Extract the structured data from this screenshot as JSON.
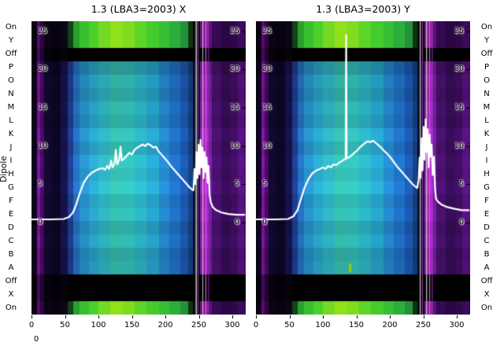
{
  "figure": {
    "background": "#ffffff",
    "text_color": "#000000",
    "ylabel": "Dipole",
    "corner_label": "0"
  },
  "chart_data": {
    "type": "heatmap",
    "description": "Two dipole spectrum heatmaps (X and Y polarization) with overlaid white median-power line",
    "x_domain": [
      0,
      320
    ],
    "x_ticks": [
      0,
      50,
      100,
      150,
      200,
      250,
      300
    ],
    "value_ticks": [
      25,
      20,
      15,
      10,
      5,
      0
    ],
    "value_axis": {
      "zero_frac": 0.686,
      "per_unit_frac": 0.02606
    },
    "row_labels": [
      "On",
      "Y",
      "Off",
      "P",
      "O",
      "N",
      "M",
      "L",
      "K",
      "J",
      "I",
      "H",
      "G",
      "F",
      "E",
      "D",
      "C",
      "B",
      "A",
      "Off",
      "X",
      "On"
    ],
    "row_shade": [
      0.8,
      0.92,
      0.86,
      0.96,
      0.9,
      1.04,
      0.94,
      1.06,
      1.0,
      1.08,
      0.96,
      1.02,
      0.9,
      0.98,
      0.86,
      0.9
    ],
    "line_color": "#ffffff",
    "columns": [
      {
        "x0": 0,
        "x1": 8,
        "top": "#0a0210",
        "off": "#05010a",
        "mid": "#0e041e",
        "bot": "#0a0210"
      },
      {
        "x0": 8,
        "x1": 13,
        "top": "#5a0a70",
        "off": "#47085a",
        "mid": "#8014a4",
        "bot": "#5a0a70"
      },
      {
        "x0": 13,
        "x1": 19,
        "top": "#2e063e",
        "off": "#1e0430",
        "mid": "#480a62",
        "bot": "#2e063e"
      },
      {
        "x0": 19,
        "x1": 30,
        "top": "#0c0216",
        "off": "#06010c",
        "mid": "#120830",
        "bot": "#0c0216"
      },
      {
        "x0": 30,
        "x1": 44,
        "top": "#070110",
        "off": "#040008",
        "mid": "#0c0626",
        "bot": "#070110"
      },
      {
        "x0": 44,
        "x1": 54,
        "top": "#0a0616",
        "off": "#05020c",
        "mid": "#16124e",
        "bot": "#0a0616"
      },
      {
        "x0": 54,
        "x1": 62,
        "top": "#14421a",
        "off": "#000000",
        "mid": "#1e3e92",
        "bot": "#14421a"
      },
      {
        "x0": 62,
        "x1": 72,
        "top": "#2aa02a",
        "off": "#000000",
        "mid": "#2472c2",
        "bot": "#2aa02a"
      },
      {
        "x0": 72,
        "x1": 86,
        "top": "#38c030",
        "off": "#000000",
        "mid": "#2892cc",
        "bot": "#38c030"
      },
      {
        "x0": 86,
        "x1": 100,
        "top": "#4cd02c",
        "off": "#000000",
        "mid": "#2aa8cc",
        "bot": "#4cd02c"
      },
      {
        "x0": 100,
        "x1": 118,
        "top": "#74d824",
        "off": "#000000",
        "mid": "#30b6c4",
        "bot": "#74d824"
      },
      {
        "x0": 118,
        "x1": 136,
        "top": "#90e01c",
        "off": "#000000",
        "mid": "#36bfb2",
        "bot": "#90e01c"
      },
      {
        "x0": 136,
        "x1": 154,
        "top": "#80dc20",
        "off": "#000000",
        "mid": "#32c0ba",
        "bot": "#80dc20"
      },
      {
        "x0": 154,
        "x1": 172,
        "top": "#5cd428",
        "off": "#000000",
        "mid": "#2cb6c6",
        "bot": "#5cd428"
      },
      {
        "x0": 172,
        "x1": 190,
        "top": "#44cc2e",
        "off": "#000000",
        "mid": "#28a6ce",
        "bot": "#44cc2e"
      },
      {
        "x0": 190,
        "x1": 206,
        "top": "#36be34",
        "off": "#000000",
        "mid": "#248ace",
        "bot": "#36be34"
      },
      {
        "x0": 206,
        "x1": 222,
        "top": "#2cae3a",
        "off": "#000000",
        "mid": "#2072c8",
        "bot": "#2cae3a"
      },
      {
        "x0": 222,
        "x1": 234,
        "top": "#249238",
        "off": "#000000",
        "mid": "#1c5ab2",
        "bot": "#249238"
      },
      {
        "x0": 234,
        "x1": 241,
        "top": "#0e3414",
        "off": "#000000",
        "mid": "#144084",
        "bot": "#0e3414"
      },
      {
        "x0": 241,
        "x1": 252,
        "top": "#060608",
        "off": "#000000",
        "mid": "#081026",
        "bot": "#060608"
      },
      {
        "x0": 252,
        "x1": 257,
        "top": "#6e1680",
        "off": "#000000",
        "mid": "#9420ae",
        "bot": "#6e1680"
      },
      {
        "x0": 257,
        "x1": 263,
        "top": "#8c1e98",
        "off": "#000000",
        "mid": "#ac28c4",
        "bot": "#8c1e98"
      },
      {
        "x0": 263,
        "x1": 269,
        "top": "#5c1274",
        "off": "#000000",
        "mid": "#7820a2",
        "bot": "#5c1274"
      },
      {
        "x0": 269,
        "x1": 284,
        "top": "#360a52",
        "off": "#000000",
        "mid": "#4a1070",
        "bot": "#360a52"
      },
      {
        "x0": 284,
        "x1": 298,
        "top": "#2a0642",
        "off": "#000000",
        "mid": "#380c58",
        "bot": "#2a0642"
      },
      {
        "x0": 298,
        "x1": 308,
        "top": "#300848",
        "off": "#000000",
        "mid": "#400e62",
        "bot": "#300848"
      },
      {
        "x0": 308,
        "x1": 320,
        "top": "#3c0a5a",
        "off": "#000000",
        "mid": "#561280",
        "bot": "#3c0a5a"
      }
    ],
    "panels": [
      {
        "title": "1.3 (LBA3=2003) X",
        "stripes": [
          {
            "x": 246,
            "w": 1.2,
            "color": "#f2f2f6"
          },
          {
            "x": 248.5,
            "w": 0.8,
            "color": "#cc44dd"
          },
          {
            "x": 256,
            "w": 0.8,
            "color": "#eeeef4"
          },
          {
            "x": 260.5,
            "w": 1.2,
            "color": "#dd55ee"
          },
          {
            "x": 264.5,
            "w": 0.8,
            "color": "#aa33cc"
          }
        ],
        "marks": [],
        "line": [
          [
            0,
            0.4
          ],
          [
            30,
            0.4
          ],
          [
            48,
            0.45
          ],
          [
            56,
            0.7
          ],
          [
            62,
            1.3
          ],
          [
            67,
            2.4
          ],
          [
            72,
            3.8
          ],
          [
            78,
            5.2
          ],
          [
            84,
            6.0
          ],
          [
            90,
            6.5
          ],
          [
            96,
            6.8
          ],
          [
            101,
            7.0
          ],
          [
            106,
            7.1
          ],
          [
            110,
            6.9
          ],
          [
            113,
            7.4
          ],
          [
            116,
            7.0
          ],
          [
            119,
            8.1
          ],
          [
            121,
            7.2
          ],
          [
            124,
            7.7
          ],
          [
            126,
            9.5
          ],
          [
            128,
            7.6
          ],
          [
            131,
            8.2
          ],
          [
            133,
            9.9
          ],
          [
            135,
            8.1
          ],
          [
            138,
            8.3
          ],
          [
            142,
            8.7
          ],
          [
            146,
            9.1
          ],
          [
            150,
            8.9
          ],
          [
            154,
            9.5
          ],
          [
            158,
            9.8
          ],
          [
            162,
            10.0
          ],
          [
            166,
            10.2
          ],
          [
            170,
            10.0
          ],
          [
            174,
            10.3
          ],
          [
            178,
            10.1
          ],
          [
            182,
            9.8
          ],
          [
            186,
            9.9
          ],
          [
            190,
            9.3
          ],
          [
            194,
            8.9
          ],
          [
            198,
            8.5
          ],
          [
            203,
            8.0
          ],
          [
            208,
            7.4
          ],
          [
            213,
            6.9
          ],
          [
            218,
            6.4
          ],
          [
            223,
            5.9
          ],
          [
            228,
            5.4
          ],
          [
            232,
            5.0
          ],
          [
            236,
            4.6
          ],
          [
            240,
            4.3
          ],
          [
            242,
            4.2
          ],
          [
            243.5,
            7.0
          ],
          [
            245,
            5.0
          ],
          [
            246.5,
            9.2
          ],
          [
            248,
            5.8
          ],
          [
            249.5,
            10.2
          ],
          [
            251,
            6.3
          ],
          [
            252.5,
            10.8
          ],
          [
            254,
            7.2
          ],
          [
            255.5,
            9.8
          ],
          [
            257,
            5.8
          ],
          [
            258.5,
            9.2
          ],
          [
            260,
            6.6
          ],
          [
            261.5,
            8.5
          ],
          [
            263,
            5.2
          ],
          [
            264.5,
            7.4
          ],
          [
            266,
            3.6
          ],
          [
            268,
            2.6
          ],
          [
            271,
            2.0
          ],
          [
            276,
            1.6
          ],
          [
            284,
            1.3
          ],
          [
            294,
            1.1
          ],
          [
            306,
            1.0
          ],
          [
            318,
            1.0
          ]
        ]
      },
      {
        "title": "1.3 (LBA3=2003) Y",
        "stripes": [
          {
            "x": 245.5,
            "w": 1.0,
            "color": "#f2f2f6"
          },
          {
            "x": 249,
            "w": 0.8,
            "color": "#cc44dd"
          },
          {
            "x": 255,
            "w": 1.0,
            "color": "#eeeef4"
          },
          {
            "x": 259.5,
            "w": 1.2,
            "color": "#dd55ee"
          },
          {
            "x": 263.5,
            "w": 0.8,
            "color": "#bb44dd"
          }
        ],
        "marks": [
          {
            "x": 139,
            "row": 18,
            "color": "#99cc00"
          }
        ],
        "line": [
          [
            0,
            0.4
          ],
          [
            30,
            0.4
          ],
          [
            48,
            0.45
          ],
          [
            56,
            0.8
          ],
          [
            62,
            1.6
          ],
          [
            67,
            3.0
          ],
          [
            72,
            4.4
          ],
          [
            78,
            5.6
          ],
          [
            84,
            6.4
          ],
          [
            90,
            6.8
          ],
          [
            96,
            7.0
          ],
          [
            100,
            7.2
          ],
          [
            104,
            7.0
          ],
          [
            108,
            7.4
          ],
          [
            112,
            7.2
          ],
          [
            116,
            7.6
          ],
          [
            120,
            7.5
          ],
          [
            124,
            7.8
          ],
          [
            128,
            8.0
          ],
          [
            131,
            8.2
          ],
          [
            134,
            8.3
          ],
          [
            134.8,
            24.5
          ],
          [
            135.6,
            8.4
          ],
          [
            139,
            8.5
          ],
          [
            143,
            8.8
          ],
          [
            147,
            9.1
          ],
          [
            151,
            9.4
          ],
          [
            155,
            9.8
          ],
          [
            159,
            10.1
          ],
          [
            163,
            10.4
          ],
          [
            167,
            10.6
          ],
          [
            171,
            10.5
          ],
          [
            175,
            10.7
          ],
          [
            179,
            10.4
          ],
          [
            183,
            10.1
          ],
          [
            187,
            9.8
          ],
          [
            191,
            9.4
          ],
          [
            196,
            9.0
          ],
          [
            201,
            8.5
          ],
          [
            206,
            7.9
          ],
          [
            211,
            7.3
          ],
          [
            216,
            6.8
          ],
          [
            221,
            6.3
          ],
          [
            226,
            5.8
          ],
          [
            230,
            5.4
          ],
          [
            234,
            5.0
          ],
          [
            238,
            4.7
          ],
          [
            241,
            4.5
          ],
          [
            243,
            5.5
          ],
          [
            244.5,
            8.5
          ],
          [
            246,
            5.8
          ],
          [
            247.5,
            11.0
          ],
          [
            249,
            6.8
          ],
          [
            250.5,
            12.5
          ],
          [
            252,
            8.2
          ],
          [
            253.5,
            13.5
          ],
          [
            255,
            9.2
          ],
          [
            256.5,
            12.2
          ],
          [
            258,
            7.2
          ],
          [
            259.5,
            11.5
          ],
          [
            261,
            8.6
          ],
          [
            262.5,
            10.2
          ],
          [
            264,
            6.2
          ],
          [
            266,
            8.6
          ],
          [
            267.5,
            4.6
          ],
          [
            269,
            3.1
          ],
          [
            272,
            2.7
          ],
          [
            278,
            2.3
          ],
          [
            286,
            2.0
          ],
          [
            296,
            1.8
          ],
          [
            308,
            1.6
          ],
          [
            318,
            1.6
          ]
        ]
      }
    ]
  }
}
